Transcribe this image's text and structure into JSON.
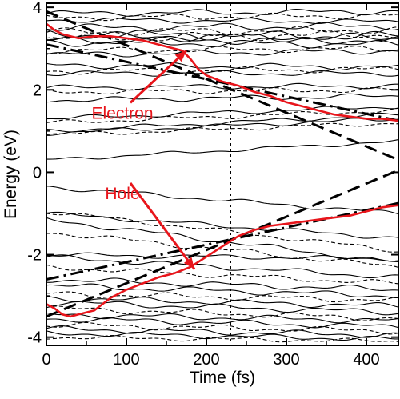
{
  "chart_data": {
    "type": "line",
    "title": "",
    "xlabel": "Time (fs)",
    "ylabel": "Energy (eV)",
    "xlim": [
      0,
      440
    ],
    "ylim": [
      -4.2,
      4.1
    ],
    "x_ticks": [
      0,
      100,
      200,
      300,
      400
    ],
    "x_tick_labels": [
      "0",
      "100",
      "200",
      "300",
      "400"
    ],
    "y_ticks": [
      -4,
      -2,
      0,
      2,
      4
    ],
    "y_tick_labels": [
      "-4",
      "-2",
      "0",
      "2",
      "4"
    ],
    "grid": false,
    "colors": {
      "highlight": "#e8151b",
      "lines": "#000000"
    },
    "annotations": [
      {
        "label": "Electron",
        "text_at": [
          95,
          1.3
        ],
        "arrow_to": [
          175,
          2.95
        ]
      },
      {
        "label": "Hole",
        "text_at": [
          95,
          -0.65
        ],
        "arrow_to": [
          185,
          -2.35
        ]
      }
    ],
    "vertical_line": {
      "x": 230,
      "style": "dotted"
    },
    "reference_lines": [
      {
        "style": "dashed",
        "x": [
          0,
          440
        ],
        "y": [
          3.9,
          0.3
        ]
      },
      {
        "style": "dashed",
        "x": [
          0,
          440
        ],
        "y": [
          -3.5,
          0.05
        ]
      },
      {
        "style": "dash-dot",
        "x": [
          0,
          440
        ],
        "y": [
          3.1,
          1.25
        ]
      },
      {
        "style": "dash-dot",
        "x": [
          0,
          440
        ],
        "y": [
          -2.6,
          -0.75
        ]
      }
    ],
    "highlight_series": [
      {
        "name": "Electron",
        "x": [
          0,
          10,
          20,
          30,
          40,
          60,
          80,
          100,
          120,
          140,
          160,
          170,
          180,
          190,
          200,
          220,
          240,
          260,
          280,
          300,
          320,
          340,
          360,
          380,
          400,
          420,
          440
        ],
        "y": [
          3.6,
          3.45,
          3.35,
          3.3,
          3.25,
          3.3,
          3.3,
          3.25,
          3.2,
          3.1,
          3.0,
          2.95,
          2.75,
          2.5,
          2.35,
          2.2,
          2.1,
          1.95,
          1.85,
          1.7,
          1.6,
          1.5,
          1.4,
          1.35,
          1.3,
          1.3,
          1.25
        ]
      },
      {
        "name": "Hole",
        "x": [
          0,
          10,
          20,
          30,
          40,
          60,
          80,
          100,
          120,
          140,
          160,
          180,
          200,
          220,
          240,
          260,
          280,
          300,
          320,
          340,
          360,
          380,
          400,
          420,
          440
        ],
        "y": [
          -3.2,
          -3.3,
          -3.45,
          -3.5,
          -3.45,
          -3.35,
          -3.05,
          -2.85,
          -2.7,
          -2.55,
          -2.45,
          -2.3,
          -2.05,
          -1.8,
          -1.55,
          -1.4,
          -1.3,
          -1.25,
          -1.2,
          -1.15,
          -1.1,
          -1.05,
          -0.95,
          -0.85,
          -0.8
        ]
      }
    ],
    "background_series": [
      {
        "x": [
          0,
          440
        ],
        "y": [
          3.85,
          3.9
        ],
        "wiggle": 0.08
      },
      {
        "x": [
          0,
          440
        ],
        "y": [
          3.75,
          3.8
        ],
        "wiggle": 0.08
      },
      {
        "x": [
          0,
          440
        ],
        "y": [
          3.7,
          3.65
        ],
        "wiggle": 0.07
      },
      {
        "x": [
          0,
          440
        ],
        "y": [
          3.5,
          3.55
        ],
        "wiggle": 0.1
      },
      {
        "x": [
          0,
          440
        ],
        "y": [
          3.4,
          3.45
        ],
        "wiggle": 0.1
      },
      {
        "x": [
          0,
          440
        ],
        "y": [
          3.35,
          3.3
        ],
        "wiggle": 0.12
      },
      {
        "x": [
          0,
          440
        ],
        "y": [
          3.3,
          3.25
        ],
        "wiggle": 0.12
      },
      {
        "x": [
          0,
          440
        ],
        "y": [
          3.25,
          3.35
        ],
        "wiggle": 0.12
      },
      {
        "x": [
          0,
          440
        ],
        "y": [
          3.2,
          3.2
        ],
        "wiggle": 0.1
      },
      {
        "x": [
          0,
          440
        ],
        "y": [
          3.15,
          3.1
        ],
        "wiggle": 0.1
      },
      {
        "x": [
          0,
          440
        ],
        "y": [
          2.95,
          3.0
        ],
        "wiggle": 0.08
      },
      {
        "x": [
          0,
          440
        ],
        "y": [
          2.85,
          2.95
        ],
        "wiggle": 0.08
      },
      {
        "x": [
          0,
          440
        ],
        "y": [
          2.6,
          2.55
        ],
        "wiggle": 0.08
      },
      {
        "x": [
          0,
          440
        ],
        "y": [
          2.45,
          2.5
        ],
        "wiggle": 0.08
      },
      {
        "x": [
          0,
          440
        ],
        "y": [
          2.4,
          2.4
        ],
        "wiggle": 0.07
      },
      {
        "x": [
          0,
          440
        ],
        "y": [
          2.05,
          2.1
        ],
        "wiggle": 0.07
      },
      {
        "x": [
          0,
          440
        ],
        "y": [
          1.95,
          2.0
        ],
        "wiggle": 0.07
      },
      {
        "x": [
          0,
          440
        ],
        "y": [
          1.75,
          1.85
        ],
        "wiggle": 0.07
      },
      {
        "x": [
          0,
          440
        ],
        "y": [
          1.3,
          1.6
        ],
        "wiggle": 0.06
      },
      {
        "x": [
          0,
          440
        ],
        "y": [
          1.2,
          1.5
        ],
        "wiggle": 0.06
      },
      {
        "x": [
          0,
          440
        ],
        "y": [
          1.0,
          1.4
        ],
        "wiggle": 0.06
      },
      {
        "x": [
          0,
          440
        ],
        "y": [
          0.95,
          1.3
        ],
        "wiggle": 0.06
      },
      {
        "x": [
          0,
          440
        ],
        "y": [
          0.9,
          1.2
        ],
        "wiggle": 0.06
      },
      {
        "x": [
          0,
          440
        ],
        "y": [
          0.3,
          0.75
        ],
        "wiggle": 0.05
      },
      {
        "x": [
          0,
          440
        ],
        "y": [
          -0.35,
          -1.0
        ],
        "wiggle": 0.06
      },
      {
        "x": [
          0,
          440
        ],
        "y": [
          -0.95,
          -1.9
        ],
        "wiggle": 0.06
      },
      {
        "x": [
          0,
          440
        ],
        "y": [
          -1.0,
          -1.6
        ],
        "wiggle": 0.06
      },
      {
        "x": [
          0,
          440
        ],
        "y": [
          -1.15,
          -2.2
        ],
        "wiggle": 0.07
      },
      {
        "x": [
          0,
          440
        ],
        "y": [
          -1.45,
          -2.3
        ],
        "wiggle": 0.07
      },
      {
        "x": [
          0,
          440
        ],
        "y": [
          -2.0,
          -2.1
        ],
        "wiggle": 0.06
      },
      {
        "x": [
          0,
          440
        ],
        "y": [
          -2.05,
          -2.55
        ],
        "wiggle": 0.07
      },
      {
        "x": [
          0,
          440
        ],
        "y": [
          -2.3,
          -2.7
        ],
        "wiggle": 0.07
      },
      {
        "x": [
          0,
          440
        ],
        "y": [
          -2.6,
          -2.85
        ],
        "wiggle": 0.08
      },
      {
        "x": [
          0,
          440
        ],
        "y": [
          -2.75,
          -3.0
        ],
        "wiggle": 0.08
      },
      {
        "x": [
          0,
          440
        ],
        "y": [
          -2.95,
          -3.1
        ],
        "wiggle": 0.08
      },
      {
        "x": [
          0,
          440
        ],
        "y": [
          -3.05,
          -3.25
        ],
        "wiggle": 0.08
      },
      {
        "x": [
          0,
          440
        ],
        "y": [
          -3.15,
          -3.4
        ],
        "wiggle": 0.08
      },
      {
        "x": [
          0,
          440
        ],
        "y": [
          -3.3,
          -3.55
        ],
        "wiggle": 0.08
      },
      {
        "x": [
          0,
          440
        ],
        "y": [
          -3.45,
          -3.6
        ],
        "wiggle": 0.08
      },
      {
        "x": [
          0,
          440
        ],
        "y": [
          -3.55,
          -3.75
        ],
        "wiggle": 0.08
      },
      {
        "x": [
          0,
          440
        ],
        "y": [
          -3.7,
          -3.85
        ],
        "wiggle": 0.08
      },
      {
        "x": [
          0,
          440
        ],
        "y": [
          -3.8,
          -3.95
        ],
        "wiggle": 0.08
      },
      {
        "x": [
          0,
          440
        ],
        "y": [
          -3.9,
          -4.05
        ],
        "wiggle": 0.07
      },
      {
        "x": [
          0,
          440
        ],
        "y": [
          -4.0,
          -4.1
        ],
        "wiggle": 0.06
      }
    ]
  }
}
